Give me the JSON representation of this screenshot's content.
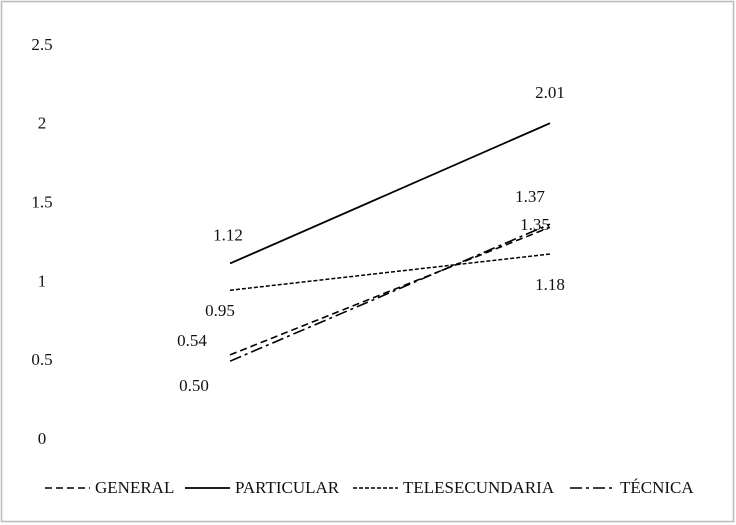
{
  "chart_data": {
    "type": "line",
    "categories": [
      null,
      null
    ],
    "series": [
      {
        "name": "GENERAL",
        "color": "#000000",
        "values": [
          0.54,
          1.35
        ],
        "value_labels": [
          "0.54",
          "1.35"
        ]
      },
      {
        "name": "PARTICULAR",
        "color": "#000000",
        "values": [
          1.12,
          2.01
        ],
        "value_labels": [
          "1.12",
          "2.01"
        ]
      },
      {
        "name": "TELESECUNDARIA",
        "color": "#000000",
        "values": [
          0.95,
          1.18
        ],
        "value_labels": [
          "0.95",
          "1.18"
        ]
      },
      {
        "name": "TÉCNICA",
        "color": "#000000",
        "values": [
          0.5,
          1.37
        ],
        "value_labels": [
          "0.50",
          "1.37"
        ]
      }
    ],
    "ylim": [
      0,
      2.5
    ],
    "yticks": [
      0,
      0.5,
      1,
      1.5,
      2,
      2.5
    ],
    "grid": false,
    "legend": "bottom"
  }
}
